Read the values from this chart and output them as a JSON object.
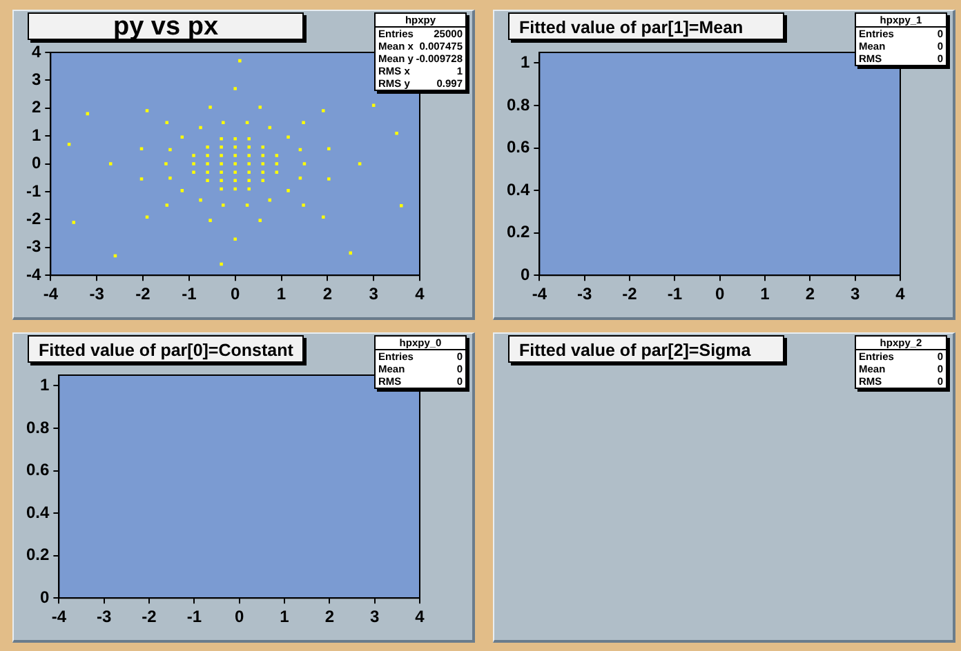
{
  "chart_data": [
    {
      "type": "scatter",
      "title": "py vs px",
      "color": "#ffff00",
      "marker": "square",
      "x": [
        -0.3,
        0,
        0.3,
        -0.6,
        -0.3,
        0,
        0.3,
        0.6,
        -0.9,
        -0.6,
        -0.3,
        0,
        0.3,
        0.6,
        0.9,
        -0.9,
        -0.6,
        -0.3,
        0,
        0.3,
        0.6,
        0.9,
        -0.9,
        -0.6,
        -0.3,
        0,
        0.3,
        0.6,
        0.9,
        -0.6,
        -0.3,
        0,
        0.3,
        0.6,
        -0.3,
        0,
        0.3,
        1.5,
        1.41,
        1.15,
        0.75,
        0.26,
        -0.26,
        -0.75,
        -1.15,
        -1.41,
        -1.5,
        -1.41,
        -1.15,
        -0.75,
        -0.26,
        0.26,
        0.75,
        1.15,
        1.41,
        2.03,
        1.48,
        0.54,
        -0.54,
        -1.48,
        -2.03,
        -2.03,
        -1.48,
        -0.54,
        0.54,
        1.48,
        2.03,
        2.7,
        1.91,
        0,
        -1.91,
        -2.7,
        -1.91,
        0,
        1.91,
        -3.2,
        3.6,
        0.1,
        -0.3,
        3.5,
        -3.5,
        2.5,
        3.0,
        -2.6,
        -3.6
      ],
      "values": [
        -0.9,
        -0.9,
        -0.9,
        -0.6,
        -0.6,
        -0.6,
        -0.6,
        -0.6,
        -0.3,
        -0.3,
        -0.3,
        -0.3,
        -0.3,
        -0.3,
        -0.3,
        0,
        0,
        0,
        0,
        0,
        0,
        0,
        0.3,
        0.3,
        0.3,
        0.3,
        0.3,
        0.3,
        0.3,
        0.6,
        0.6,
        0.6,
        0.6,
        0.6,
        0.9,
        0.9,
        0.9,
        0,
        0.51,
        0.96,
        1.3,
        1.48,
        1.48,
        1.3,
        0.96,
        0.51,
        0,
        -0.51,
        -0.96,
        -1.3,
        -1.48,
        -1.48,
        -1.3,
        -0.96,
        -0.51,
        0.54,
        1.48,
        2.03,
        2.03,
        1.48,
        0.54,
        -0.54,
        -1.48,
        -2.03,
        -2.03,
        -1.48,
        -0.54,
        0,
        1.91,
        2.7,
        1.91,
        0,
        -1.91,
        -2.7,
        -1.91,
        1.8,
        -1.5,
        3.7,
        -3.6,
        1.1,
        -2.1,
        -3.2,
        2.1,
        -3.3,
        0.7
      ],
      "xlim": [
        -4,
        4
      ],
      "ylim": [
        -4,
        4
      ],
      "xticks": [
        -4,
        -3,
        -2,
        -1,
        0,
        1,
        2,
        3,
        4
      ],
      "yticks": [
        -4,
        -3,
        -2,
        -1,
        0,
        1,
        2,
        3,
        4
      ],
      "annotations": [
        "hpxpy",
        "Entries",
        "25000",
        "Mean x",
        "0.007475",
        "Mean y",
        "-0.009728",
        "RMS x",
        "1",
        "RMS y",
        "0.997"
      ]
    },
    {
      "type": "scatter",
      "title": "Fitted value of par[1]=Mean",
      "xlim": [
        -4,
        4
      ],
      "ylim": [
        0,
        1.05
      ],
      "xticks": [
        -4,
        -3,
        -2,
        -1,
        0,
        1,
        2,
        3,
        4
      ],
      "yticks": [
        0,
        0.2,
        0.4,
        0.6,
        0.8,
        1
      ],
      "annotations": [
        "hpxpy_1",
        "Entries",
        "0",
        "Mean",
        "0",
        "RMS",
        "0"
      ]
    },
    {
      "type": "scatter",
      "title": "Fitted value of par[0]=Constant",
      "xlim": [
        -4,
        4
      ],
      "ylim": [
        0,
        1.05
      ],
      "xticks": [
        -4,
        -3,
        -2,
        -1,
        0,
        1,
        2,
        3,
        4
      ],
      "yticks": [
        0,
        0.2,
        0.4,
        0.6,
        0.8,
        1
      ],
      "annotations": [
        "hpxpy_0",
        "Entries",
        "0",
        "Mean",
        "0",
        "RMS",
        "0"
      ]
    },
    {
      "type": "other",
      "title": "Fitted value of par[2]=Sigma",
      "annotations": [
        "hpxpy_2",
        "Entries",
        "0",
        "Mean",
        "0",
        "RMS",
        "0"
      ]
    }
  ]
}
